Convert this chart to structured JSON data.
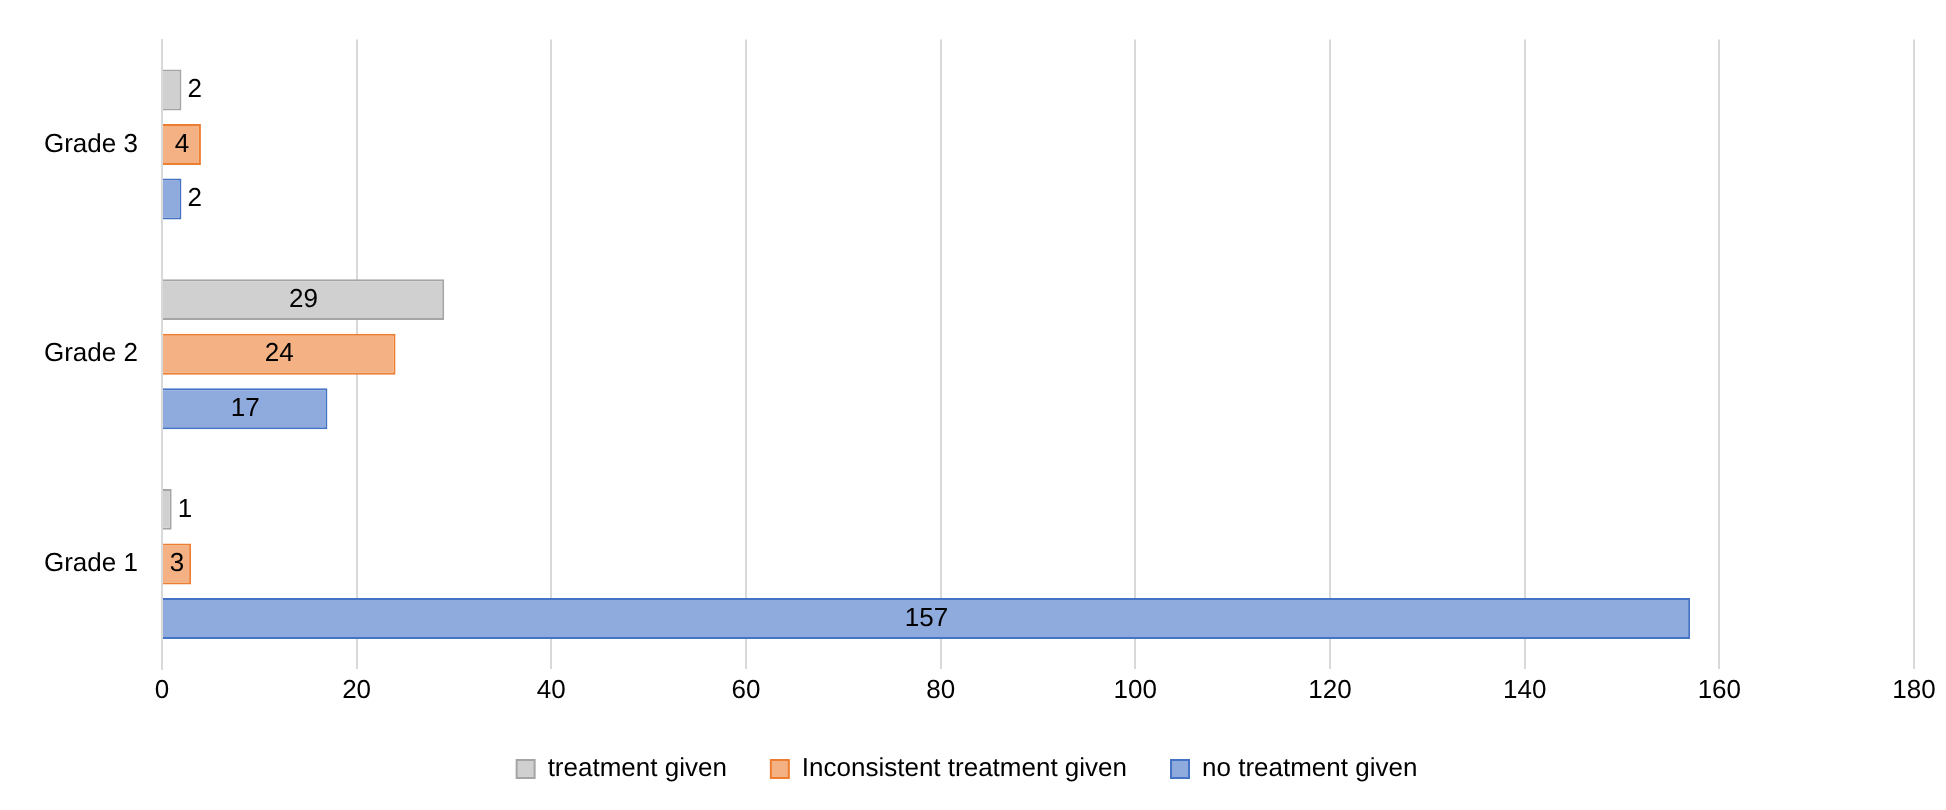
{
  "chart_data": {
    "type": "bar",
    "orientation": "horizontal",
    "categories": [
      "Grade 3",
      "Grade 2",
      "Grade 1"
    ],
    "series": [
      {
        "name": "treatment given",
        "color": "#d0d0d0",
        "values": [
          2,
          29,
          1
        ]
      },
      {
        "name": "Inconsistent treatment given",
        "color": "#f4b183",
        "values": [
          4,
          24,
          3
        ]
      },
      {
        "name": "no treatment given",
        "color": "#8faadc",
        "values": [
          2,
          17,
          157
        ]
      }
    ],
    "xlim": [
      0,
      180
    ],
    "xticks": [
      0,
      20,
      40,
      60,
      80,
      100,
      120,
      140,
      160,
      180
    ],
    "grid": "x",
    "legend": "bottom",
    "data_labels": true
  }
}
